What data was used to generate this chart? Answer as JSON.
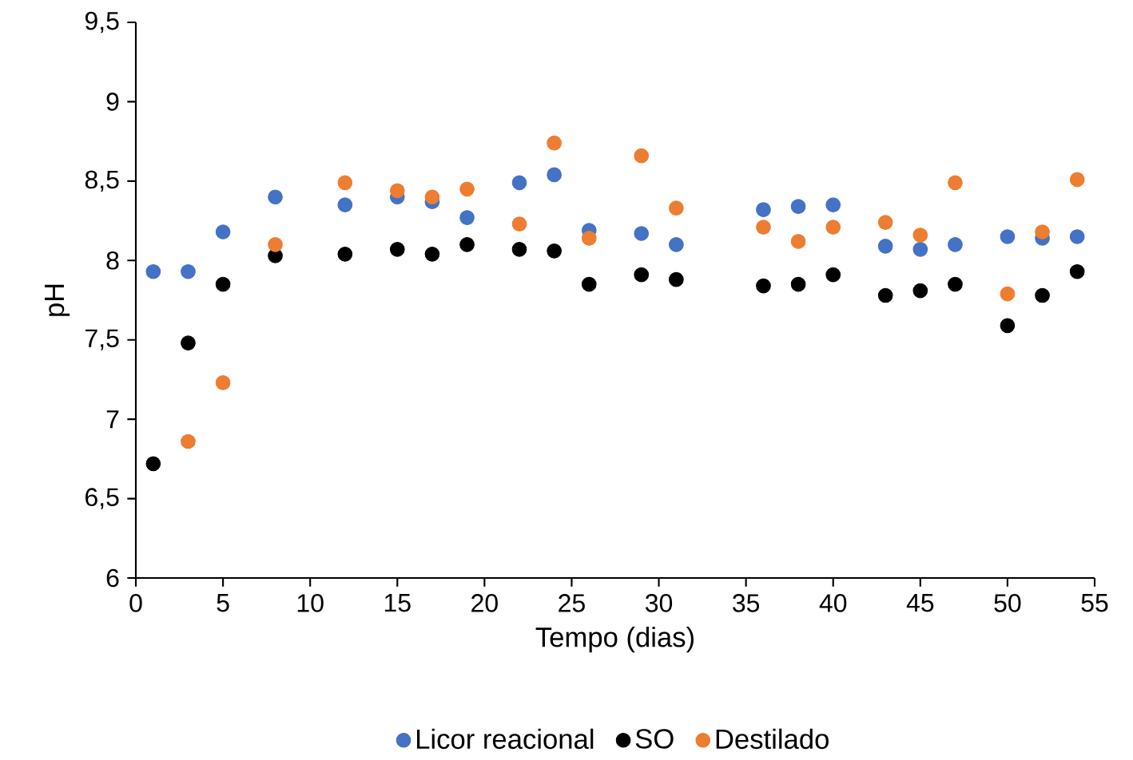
{
  "chart_data": {
    "type": "scatter",
    "xlabel": "Tempo (dias)",
    "ylabel": "pH",
    "xlim": [
      0,
      55
    ],
    "xticks": [
      0,
      5,
      10,
      15,
      20,
      25,
      30,
      35,
      40,
      45,
      50,
      55
    ],
    "ylim": [
      6,
      9.5
    ],
    "yticks": [
      6,
      {
        "value": 6.5,
        "label": "6,5"
      },
      7,
      {
        "value": 7.5,
        "label": "7,5"
      },
      8,
      {
        "value": 8.5,
        "label": "8,5"
      },
      9,
      {
        "value": 9.5,
        "label": "9,5"
      }
    ],
    "grid": false,
    "legend": "bottom",
    "marker": "circle",
    "series": [
      {
        "name": "Licor reacional",
        "color": "#4472c4",
        "x": [
          1,
          3,
          5,
          8,
          12,
          15,
          17,
          19,
          22,
          24,
          26,
          29,
          31,
          36,
          38,
          40,
          43,
          45,
          47,
          50,
          52,
          54
        ],
        "values": [
          7.93,
          7.93,
          8.18,
          8.4,
          8.35,
          8.4,
          8.37,
          8.27,
          8.49,
          8.54,
          8.19,
          8.17,
          8.1,
          8.32,
          8.34,
          8.35,
          8.09,
          8.07,
          8.1,
          8.15,
          8.14,
          8.15
        ]
      },
      {
        "name": "SO",
        "color": "#000000",
        "x": [
          1,
          3,
          5,
          8,
          12,
          15,
          17,
          19,
          22,
          24,
          26,
          29,
          31,
          36,
          38,
          40,
          43,
          45,
          47,
          50,
          52,
          54
        ],
        "values": [
          6.72,
          7.48,
          7.85,
          8.03,
          8.04,
          8.07,
          8.04,
          8.1,
          8.07,
          8.06,
          7.85,
          7.91,
          7.88,
          7.84,
          7.85,
          7.91,
          7.78,
          7.81,
          7.85,
          7.59,
          7.78,
          7.93
        ]
      },
      {
        "name": "Destilado",
        "color": "#ed7d31",
        "x": [
          3,
          5,
          8,
          12,
          15,
          17,
          19,
          22,
          24,
          26,
          29,
          31,
          36,
          38,
          40,
          43,
          45,
          47,
          50,
          52,
          54
        ],
        "values": [
          6.86,
          7.23,
          8.1,
          8.49,
          8.44,
          8.4,
          8.45,
          8.23,
          8.74,
          8.14,
          8.66,
          8.33,
          8.21,
          8.12,
          8.21,
          8.24,
          8.16,
          8.49,
          7.79,
          8.18,
          8.51
        ]
      }
    ]
  }
}
